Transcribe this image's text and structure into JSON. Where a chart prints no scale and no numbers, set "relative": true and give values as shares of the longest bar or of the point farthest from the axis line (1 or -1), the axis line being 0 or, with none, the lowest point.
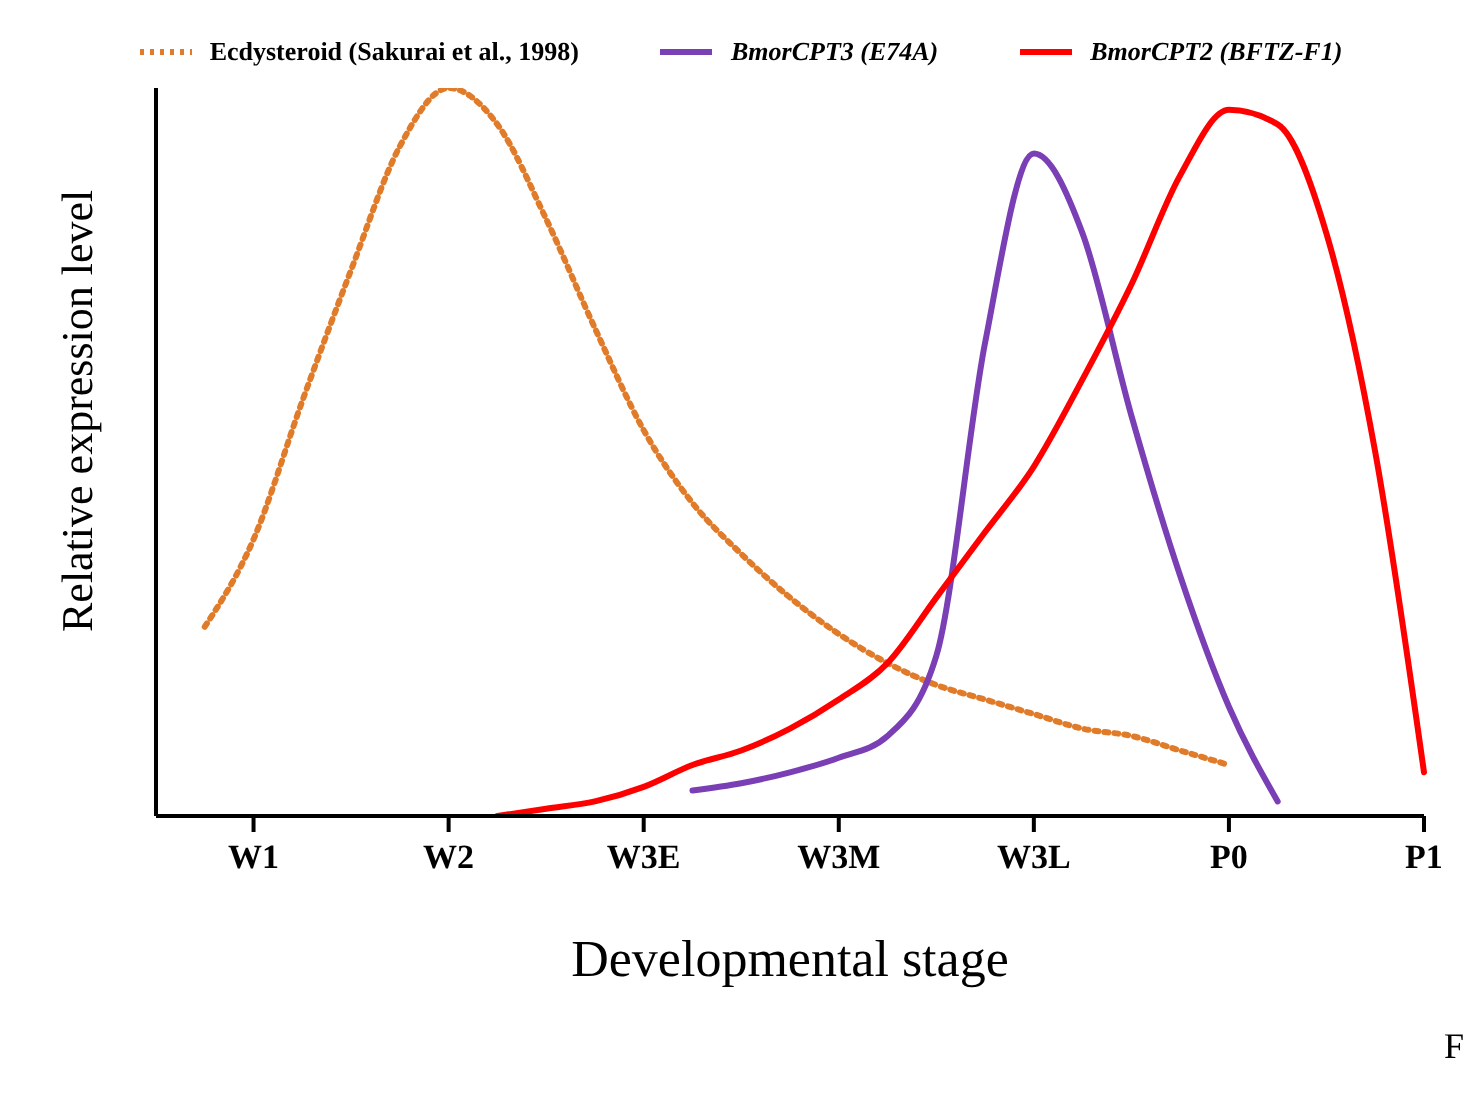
{
  "chart_data": {
    "type": "line",
    "relative": true,
    "xlabel": "Developmental    stage",
    "ylabel": "Relative expression level",
    "annotations": [
      "F"
    ],
    "categories": [
      null,
      null,
      "W1",
      null,
      null,
      null,
      "W2",
      null,
      null,
      null,
      "W3E",
      null,
      null,
      null,
      "W3M",
      null,
      null,
      null,
      "W3L",
      null,
      null,
      null,
      "P0",
      null,
      null,
      null,
      "P1"
    ],
    "grid": false,
    "legend": "top",
    "marker": "none",
    "series": [
      {
        "name": "Ecdysteroid (Sakurai et al., 1998)",
        "color": "#e07b2a",
        "line_style": "dotted",
        "values": [
          null,
          0.26,
          0.38,
          0.57,
          0.75,
          0.92,
          1.0,
          0.95,
          0.82,
          0.67,
          0.53,
          0.43,
          0.36,
          0.3,
          0.25,
          0.21,
          0.18,
          0.16,
          0.14,
          0.12,
          0.11,
          0.09,
          0.07,
          null,
          null,
          null,
          null
        ]
      },
      {
        "name": "BmorCPT3 (E74A)",
        "color": "#7b3fb5",
        "line_style": "solid",
        "values": [
          null,
          null,
          null,
          null,
          null,
          null,
          null,
          null,
          null,
          null,
          null,
          0.035,
          0.045,
          0.06,
          0.08,
          0.11,
          0.22,
          0.65,
          0.91,
          0.8,
          0.55,
          0.33,
          0.15,
          0.02,
          null,
          null,
          null
        ]
      },
      {
        "name": "BmorCPT2 (BFTZ-F1)",
        "color": "#ff0000",
        "line_style": "solid",
        "values": [
          null,
          null,
          null,
          null,
          null,
          null,
          null,
          0.0,
          0.01,
          0.02,
          0.04,
          0.07,
          0.09,
          0.12,
          0.16,
          0.21,
          0.3,
          0.39,
          0.48,
          0.6,
          0.73,
          0.88,
          0.97,
          0.95,
          0.8,
          0.5,
          0.06
        ]
      }
    ]
  }
}
